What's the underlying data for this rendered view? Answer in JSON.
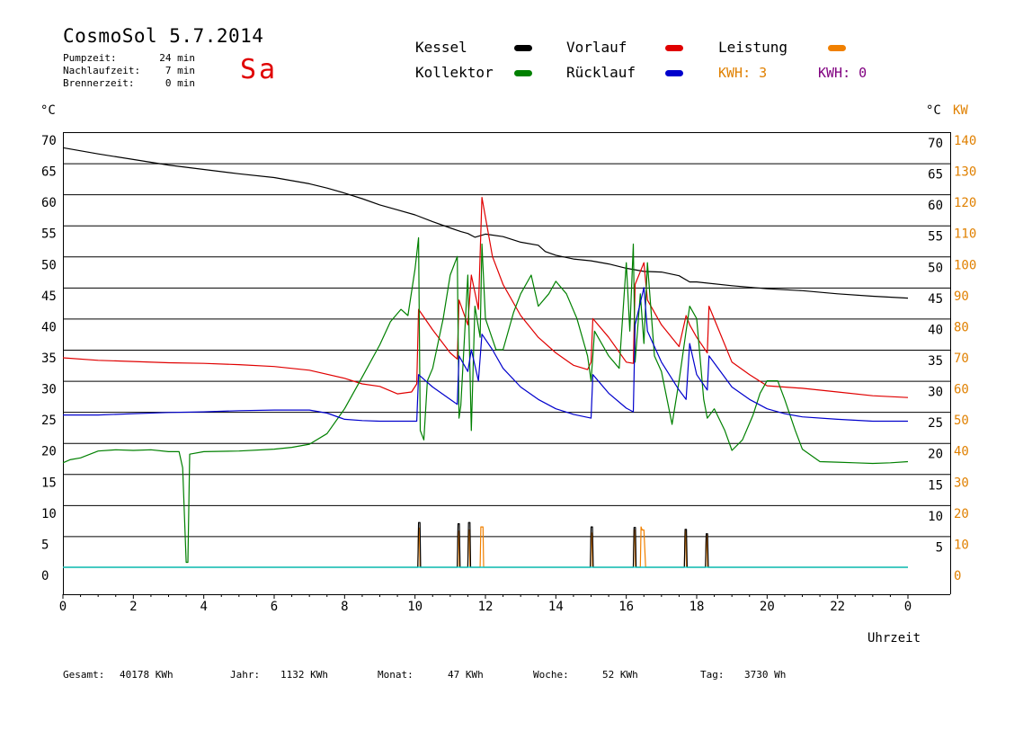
{
  "header": {
    "title": "CosmoSol 5.7.2014",
    "day": "Sa",
    "info": [
      {
        "label": "Pumpzeit:",
        "value": "24 min"
      },
      {
        "label": "Nachlaufzeit:",
        "value": "7 min"
      },
      {
        "label": "Brennerzeit:",
        "value": "0 min"
      }
    ]
  },
  "legend": {
    "kessel": {
      "label": "Kessel",
      "color": "#000000"
    },
    "vorlauf": {
      "label": "Vorlauf",
      "color": "#e00000"
    },
    "leistung": {
      "label": "Leistung",
      "color": "#f08000"
    },
    "kollektor": {
      "label": "Kollektor",
      "color": "#008000"
    },
    "ruecklauf": {
      "label": "Rücklauf",
      "color": "#0000cc"
    },
    "kwh1": {
      "label": "KWH: 3",
      "color": "#e08000"
    },
    "kwh2": {
      "label": "KWH: 0",
      "color": "#800080"
    }
  },
  "footer": {
    "gesamt_label": "Gesamt:",
    "gesamt_value": "40178 KWh",
    "jahr_label": "Jahr:",
    "jahr_value": "1132 KWh",
    "monat_label": "Monat:",
    "monat_value": "47 KWh",
    "woche_label": "Woche:",
    "woche_value": "52 KWh",
    "tag_label": "Tag:",
    "tag_value": "3730 Wh"
  },
  "chart_data": {
    "type": "line",
    "xlabel": "Uhrzeit",
    "ylabel_left": "°C",
    "ylabel_right_c": "°C",
    "ylabel_right_kw": "KW",
    "xlim": [
      0,
      24
    ],
    "ylim": [
      0,
      70
    ],
    "x_ticks": [
      "0",
      "2",
      "4",
      "6",
      "8",
      "10",
      "12",
      "14",
      "16",
      "18",
      "20",
      "22",
      "0"
    ],
    "y_ticks_left": [
      "0",
      "5",
      "10",
      "15",
      "20",
      "25",
      "30",
      "35",
      "40",
      "45",
      "50",
      "55",
      "60",
      "65",
      "70"
    ],
    "y_ticks_right_c": [
      "5",
      "10",
      "15",
      "20",
      "25",
      "30",
      "35",
      "40",
      "45",
      "50",
      "55",
      "60",
      "65",
      "70"
    ],
    "y_ticks_right_kw": [
      "0",
      "10",
      "20",
      "30",
      "40",
      "50",
      "60",
      "70",
      "80",
      "90",
      "100",
      "110",
      "120",
      "130",
      "140"
    ],
    "grid": true,
    "series": [
      {
        "name": "Kessel",
        "color": "#000000",
        "x": [
          0,
          1,
          2,
          3,
          4,
          5,
          6,
          7,
          7.5,
          8,
          8.5,
          9,
          9.5,
          10,
          10.5,
          11,
          11.3,
          11.5,
          11.7,
          12,
          12.5,
          13,
          13.5,
          13.7,
          14,
          14.5,
          15,
          15.5,
          16,
          16.5,
          17,
          17.5,
          17.8,
          18,
          19,
          20,
          21,
          22,
          23,
          24
        ],
        "y": [
          67.5,
          66.5,
          65.6,
          64.7,
          64,
          63.3,
          62.7,
          61.7,
          61,
          60.2,
          59.3,
          58.3,
          57.5,
          56.7,
          55.6,
          54.6,
          54,
          53.7,
          53.1,
          53.6,
          53.2,
          52.3,
          51.8,
          50.8,
          50.2,
          49.6,
          49.3,
          48.8,
          48.1,
          47.6,
          47.5,
          46.9,
          45.9,
          45.9,
          45.3,
          44.8,
          44.5,
          44,
          43.6,
          43.3
        ]
      },
      {
        "name": "Vorlauf",
        "color": "#e00000",
        "x": [
          0,
          1,
          2,
          3,
          4,
          5,
          6,
          7,
          8,
          8.5,
          9,
          9.5,
          9.9,
          10.05,
          10.1,
          10.5,
          11,
          11.2,
          11.25,
          11.5,
          11.6,
          11.8,
          11.9,
          12.2,
          12.5,
          13,
          13.5,
          14,
          14.5,
          14.9,
          15,
          15.05,
          15.5,
          16,
          16.2,
          16.25,
          16.5,
          16.6,
          17,
          17.5,
          17.7,
          17.8,
          18,
          18.3,
          18.35,
          19,
          19.5,
          20,
          21,
          22,
          23,
          24
        ],
        "y": [
          33.7,
          33.3,
          33.1,
          32.9,
          32.8,
          32.6,
          32.3,
          31.7,
          30.4,
          29.5,
          29.1,
          27.9,
          28.2,
          29.5,
          41.5,
          38.2,
          34.5,
          33.5,
          43,
          39,
          47,
          41.5,
          59.5,
          50,
          45.5,
          40.5,
          37,
          34.5,
          32.5,
          31.8,
          33,
          40,
          37,
          33,
          32.8,
          45.5,
          49,
          43,
          39,
          35.5,
          40.5,
          39,
          37,
          34.5,
          42,
          33,
          31,
          29.2,
          28.8,
          28.2,
          27.6,
          27.3
        ]
      },
      {
        "name": "Kollektor",
        "color": "#008000",
        "x": [
          0,
          0.2,
          0.5,
          1,
          1.5,
          2,
          2.5,
          3,
          3.3,
          3.4,
          3.5,
          3.55,
          3.6,
          4,
          5,
          6,
          6.5,
          7,
          7.5,
          8,
          8.5,
          9,
          9.3,
          9.6,
          9.8,
          10,
          10.1,
          10.15,
          10.25,
          10.35,
          10.5,
          10.8,
          11,
          11.2,
          11.25,
          11.3,
          11.5,
          11.6,
          11.7,
          11.85,
          11.9,
          12,
          12.3,
          12.5,
          12.8,
          13,
          13.3,
          13.5,
          13.8,
          14,
          14.3,
          14.6,
          14.9,
          15,
          15.1,
          15.5,
          15.8,
          16,
          16.1,
          16.2,
          16.25,
          16.4,
          16.5,
          16.6,
          16.8,
          17,
          17.3,
          17.5,
          17.7,
          17.8,
          18,
          18.2,
          18.3,
          18.5,
          18.8,
          19,
          19.3,
          19.6,
          19.8,
          20,
          20.3,
          20.5,
          20.8,
          21,
          21.5,
          22,
          22.5,
          23,
          23.5,
          24
        ],
        "y": [
          16.8,
          17.3,
          17.6,
          18.7,
          18.9,
          18.8,
          18.9,
          18.6,
          18.6,
          16,
          0.8,
          0.8,
          18.2,
          18.6,
          18.7,
          19,
          19.3,
          19.8,
          21.5,
          25.5,
          30.6,
          35.8,
          39.5,
          41.5,
          40.5,
          48,
          53,
          22,
          20.5,
          30,
          32,
          40,
          47,
          50,
          24,
          26,
          47,
          22,
          42,
          37,
          52,
          40,
          35,
          35,
          41,
          44,
          47,
          42,
          44,
          46,
          44,
          40,
          34,
          30,
          38,
          34,
          32,
          49,
          38,
          52,
          33,
          44,
          36,
          49,
          34,
          31.5,
          23,
          30,
          38,
          42,
          40,
          27,
          24,
          25.5,
          22,
          18.8,
          20.5,
          24.5,
          28,
          30,
          30,
          27,
          22,
          19,
          17,
          16.9,
          16.8,
          16.7,
          16.8,
          17
        ]
      },
      {
        "name": "Rücklauf",
        "color": "#0000cc",
        "x": [
          0,
          1,
          2,
          3,
          4,
          5,
          6,
          6.5,
          7,
          7.5,
          8,
          8.5,
          9,
          9.5,
          10,
          10.05,
          10.1,
          10.5,
          11,
          11.2,
          11.25,
          11.5,
          11.6,
          11.8,
          11.9,
          12.2,
          12.5,
          13,
          13.5,
          14,
          14.5,
          15,
          15.05,
          15.5,
          16,
          16.2,
          16.25,
          16.5,
          16.6,
          17,
          17.5,
          17.7,
          17.8,
          18,
          18.3,
          18.35,
          19,
          19.5,
          20,
          20.5,
          21,
          22,
          23,
          24
        ],
        "y": [
          24.5,
          24.5,
          24.7,
          24.9,
          25,
          25.2,
          25.3,
          25.3,
          25.3,
          24.8,
          23.8,
          23.6,
          23.5,
          23.5,
          23.5,
          23.5,
          31,
          29,
          27,
          26.2,
          34,
          31.5,
          35,
          30,
          37.5,
          35,
          32,
          29,
          27,
          25.5,
          24.6,
          24,
          31,
          28,
          25.6,
          25,
          39,
          45,
          38,
          33,
          28.5,
          27,
          36,
          31,
          28.5,
          34,
          29,
          27,
          25.5,
          24.7,
          24.2,
          23.8,
          23.5,
          23.5
        ]
      },
      {
        "name": "Leistung",
        "color": "#f08000",
        "x": [
          0,
          10.08,
          10.1,
          10.12,
          10.14,
          11.2,
          11.22,
          11.24,
          11.26,
          11.5,
          11.52,
          11.54,
          11.56,
          11.85,
          11.87,
          11.9,
          11.93,
          11.95,
          14.98,
          15,
          15.02,
          15.04,
          16.2,
          16.22,
          16.24,
          16.26,
          16.4,
          16.42,
          16.45,
          16.5,
          16.55,
          17.65,
          17.67,
          17.69,
          17.71,
          18.25,
          18.27,
          18.29,
          18.31,
          24
        ],
        "y": [
          0,
          0,
          6.3,
          6.3,
          0,
          0,
          5.8,
          5.8,
          0,
          0,
          6,
          6,
          0,
          0,
          6.5,
          6.5,
          6.5,
          0,
          0,
          5.5,
          5.5,
          0,
          0,
          6,
          6,
          0,
          0,
          6.5,
          6,
          6,
          0,
          0,
          6,
          6,
          0,
          0,
          5.2,
          5.2,
          0,
          0
        ]
      },
      {
        "name": "Pumpe",
        "color": "#000000",
        "x": [
          0,
          10.08,
          10.1,
          10.14,
          10.16,
          11.2,
          11.22,
          11.26,
          11.28,
          11.5,
          11.52,
          11.56,
          11.58,
          14.98,
          15,
          15.04,
          15.06,
          16.2,
          16.22,
          16.26,
          16.28,
          17.65,
          17.67,
          17.71,
          17.73,
          18.25,
          18.27,
          18.31,
          18.33,
          24
        ],
        "y": [
          0,
          0,
          7.2,
          7.2,
          0,
          0,
          7,
          7,
          0,
          0,
          7.2,
          7.2,
          0,
          0,
          6.5,
          6.5,
          0,
          0,
          6.4,
          6.4,
          0,
          0,
          6.1,
          6.1,
          0,
          0,
          5.4,
          5.4,
          0,
          0
        ]
      },
      {
        "name": "Nulllinie",
        "color": "#00e0e0",
        "x": [
          0,
          24
        ],
        "y": [
          0,
          0
        ]
      }
    ]
  }
}
